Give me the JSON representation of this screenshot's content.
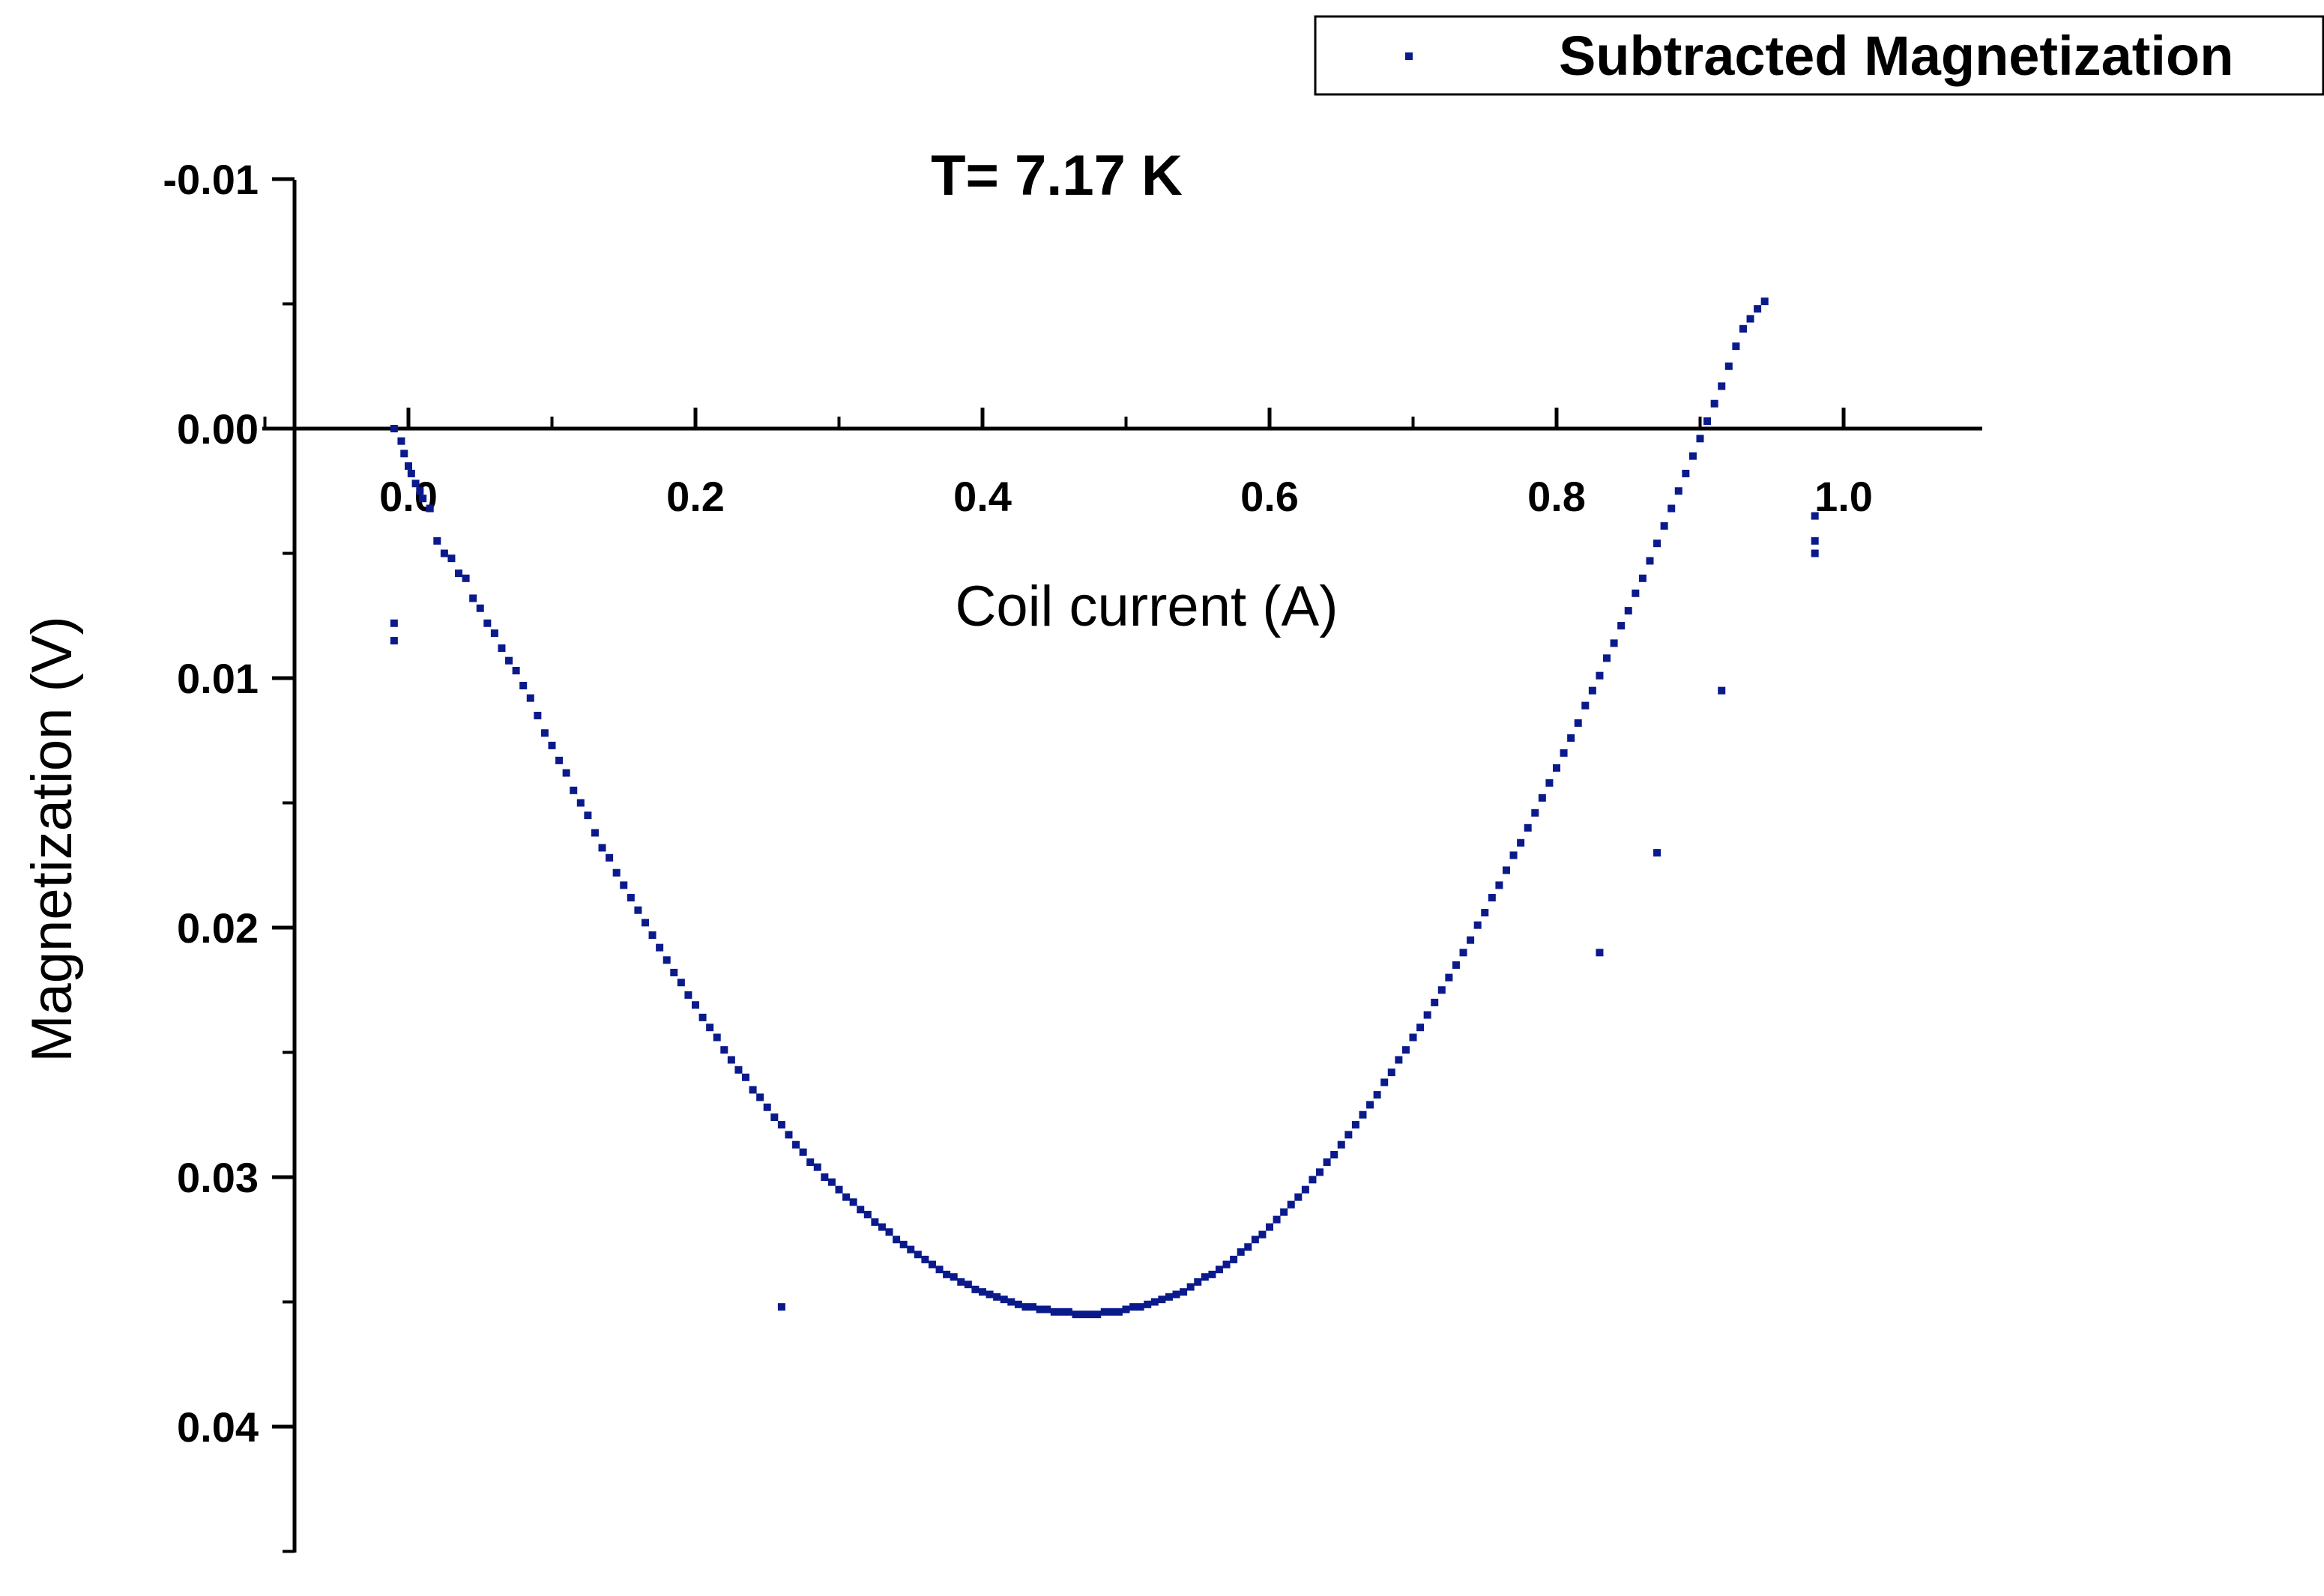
{
  "chart_data": {
    "type": "scatter",
    "title": "T= 7.17 K",
    "xlabel": "Coil current (A)",
    "ylabel": "Magnetization (V)",
    "xlim": [
      -0.15,
      1.1
    ],
    "ylim": [
      -0.01,
      0.045
    ],
    "y_inverted": true,
    "x_ticks": [
      0.0,
      0.2,
      0.4,
      0.6,
      0.8,
      1.0
    ],
    "x_tick_labels": [
      "0.0",
      "0.2",
      "0.4",
      "0.6",
      "0.8",
      "1.0"
    ],
    "y_ticks": [
      -0.01,
      0.0,
      0.01,
      0.02,
      0.03,
      0.04
    ],
    "y_tick_labels": [
      "-0.01",
      "0.00",
      "0.01",
      "0.02",
      "0.03",
      "0.04"
    ],
    "grid": false,
    "legend_position": "top-right",
    "marker_color": "#0a1a8c",
    "series": [
      {
        "name": "Subtracted Magnetization",
        "points": [
          [
            -0.01,
            0.0
          ],
          [
            -0.005,
            0.0005
          ],
          [
            -0.003,
            0.001
          ],
          [
            0.0,
            0.0015
          ],
          [
            0.002,
            0.0018
          ],
          [
            0.005,
            0.0022
          ],
          [
            0.008,
            0.0025
          ],
          [
            0.01,
            0.0028
          ],
          [
            0.015,
            0.0032
          ],
          [
            0.02,
            0.0045
          ],
          [
            0.025,
            0.005
          ],
          [
            0.03,
            0.0052
          ],
          [
            0.035,
            0.0058
          ],
          [
            0.04,
            0.006
          ],
          [
            0.045,
            0.0068
          ],
          [
            0.05,
            0.0072
          ],
          [
            0.055,
            0.0078
          ],
          [
            0.06,
            0.0082
          ],
          [
            0.065,
            0.0088
          ],
          [
            0.07,
            0.0093
          ],
          [
            0.075,
            0.0097
          ],
          [
            0.08,
            0.0103
          ],
          [
            0.085,
            0.0108
          ],
          [
            0.09,
            0.0115
          ],
          [
            0.095,
            0.0122
          ],
          [
            0.1,
            0.0127
          ],
          [
            0.105,
            0.0133
          ],
          [
            0.11,
            0.0138
          ],
          [
            0.115,
            0.0145
          ],
          [
            0.12,
            0.015
          ],
          [
            0.125,
            0.0155
          ],
          [
            0.13,
            0.0162
          ],
          [
            0.135,
            0.0168
          ],
          [
            0.14,
            0.0172
          ],
          [
            0.145,
            0.0178
          ],
          [
            0.15,
            0.0183
          ],
          [
            0.155,
            0.0188
          ],
          [
            0.16,
            0.0193
          ],
          [
            0.165,
            0.0198
          ],
          [
            0.17,
            0.0203
          ],
          [
            0.175,
            0.0208
          ],
          [
            0.18,
            0.0213
          ],
          [
            0.185,
            0.0218
          ],
          [
            0.19,
            0.0222
          ],
          [
            0.195,
            0.0227
          ],
          [
            0.2,
            0.0231
          ],
          [
            0.205,
            0.0236
          ],
          [
            0.21,
            0.024
          ],
          [
            0.215,
            0.0244
          ],
          [
            0.22,
            0.0249
          ],
          [
            0.225,
            0.0253
          ],
          [
            0.23,
            0.0257
          ],
          [
            0.235,
            0.026
          ],
          [
            0.24,
            0.0265
          ],
          [
            0.245,
            0.0268
          ],
          [
            0.25,
            0.0272
          ],
          [
            0.255,
            0.0276
          ],
          [
            0.26,
            0.0279
          ],
          [
            0.265,
            0.0283
          ],
          [
            0.27,
            0.0287
          ],
          [
            0.275,
            0.029
          ],
          [
            0.28,
            0.0294
          ],
          [
            0.285,
            0.0296
          ],
          [
            0.29,
            0.03
          ],
          [
            0.295,
            0.0302
          ],
          [
            0.3,
            0.0305
          ],
          [
            0.305,
            0.0308
          ],
          [
            0.31,
            0.031
          ],
          [
            0.315,
            0.0313
          ],
          [
            0.32,
            0.0315
          ],
          [
            0.325,
            0.0318
          ],
          [
            0.33,
            0.032
          ],
          [
            0.335,
            0.0322
          ],
          [
            0.34,
            0.0325
          ],
          [
            0.345,
            0.0327
          ],
          [
            0.35,
            0.0329
          ],
          [
            0.355,
            0.0331
          ],
          [
            0.36,
            0.0333
          ],
          [
            0.365,
            0.0335
          ],
          [
            0.37,
            0.0337
          ],
          [
            0.375,
            0.0339
          ],
          [
            0.38,
            0.034
          ],
          [
            0.385,
            0.0342
          ],
          [
            0.39,
            0.0343
          ],
          [
            0.395,
            0.0345
          ],
          [
            0.4,
            0.0346
          ],
          [
            0.405,
            0.0347
          ],
          [
            0.41,
            0.0348
          ],
          [
            0.415,
            0.0349
          ],
          [
            0.42,
            0.035
          ],
          [
            0.425,
            0.0351
          ],
          [
            0.43,
            0.0352
          ],
          [
            0.435,
            0.0352
          ],
          [
            0.44,
            0.0353
          ],
          [
            0.445,
            0.0353
          ],
          [
            0.45,
            0.0354
          ],
          [
            0.455,
            0.0354
          ],
          [
            0.46,
            0.0354
          ],
          [
            0.465,
            0.0355
          ],
          [
            0.47,
            0.0355
          ],
          [
            0.475,
            0.0355
          ],
          [
            0.48,
            0.0355
          ],
          [
            0.485,
            0.0354
          ],
          [
            0.49,
            0.0354
          ],
          [
            0.495,
            0.0354
          ],
          [
            0.5,
            0.0353
          ],
          [
            0.505,
            0.0352
          ],
          [
            0.51,
            0.0352
          ],
          [
            0.515,
            0.0351
          ],
          [
            0.52,
            0.035
          ],
          [
            0.525,
            0.0349
          ],
          [
            0.53,
            0.0348
          ],
          [
            0.535,
            0.0347
          ],
          [
            0.54,
            0.0346
          ],
          [
            0.545,
            0.0344
          ],
          [
            0.55,
            0.0342
          ],
          [
            0.555,
            0.034
          ],
          [
            0.56,
            0.0339
          ],
          [
            0.565,
            0.0337
          ],
          [
            0.57,
            0.0335
          ],
          [
            0.575,
            0.0333
          ],
          [
            0.58,
            0.033
          ],
          [
            0.585,
            0.0328
          ],
          [
            0.59,
            0.0325
          ],
          [
            0.595,
            0.0323
          ],
          [
            0.6,
            0.032
          ],
          [
            0.605,
            0.0317
          ],
          [
            0.61,
            0.0314
          ],
          [
            0.615,
            0.0311
          ],
          [
            0.62,
            0.0308
          ],
          [
            0.625,
            0.0305
          ],
          [
            0.63,
            0.0301
          ],
          [
            0.635,
            0.0298
          ],
          [
            0.64,
            0.0294
          ],
          [
            0.645,
            0.0291
          ],
          [
            0.65,
            0.0287
          ],
          [
            0.655,
            0.0283
          ],
          [
            0.66,
            0.0279
          ],
          [
            0.665,
            0.0275
          ],
          [
            0.67,
            0.0271
          ],
          [
            0.675,
            0.0267
          ],
          [
            0.68,
            0.0262
          ],
          [
            0.685,
            0.0258
          ],
          [
            0.69,
            0.0253
          ],
          [
            0.695,
            0.0249
          ],
          [
            0.7,
            0.0244
          ],
          [
            0.705,
            0.024
          ],
          [
            0.71,
            0.0235
          ],
          [
            0.715,
            0.023
          ],
          [
            0.72,
            0.0225
          ],
          [
            0.725,
            0.022
          ],
          [
            0.73,
            0.0215
          ],
          [
            0.735,
            0.021
          ],
          [
            0.74,
            0.0205
          ],
          [
            0.745,
            0.0199
          ],
          [
            0.75,
            0.0194
          ],
          [
            0.755,
            0.0188
          ],
          [
            0.76,
            0.0183
          ],
          [
            0.765,
            0.0177
          ],
          [
            0.77,
            0.0171
          ],
          [
            0.775,
            0.0166
          ],
          [
            0.78,
            0.016
          ],
          [
            0.785,
            0.0154
          ],
          [
            0.79,
            0.0148
          ],
          [
            0.795,
            0.0142
          ],
          [
            0.8,
            0.0136
          ],
          [
            0.805,
            0.013
          ],
          [
            0.81,
            0.0124
          ],
          [
            0.815,
            0.0118
          ],
          [
            0.82,
            0.0111
          ],
          [
            0.825,
            0.0105
          ],
          [
            0.83,
            0.0099
          ],
          [
            0.835,
            0.0092
          ],
          [
            0.84,
            0.0086
          ],
          [
            0.845,
            0.0079
          ],
          [
            0.85,
            0.0073
          ],
          [
            0.855,
            0.0066
          ],
          [
            0.86,
            0.006
          ],
          [
            0.865,
            0.0053
          ],
          [
            0.87,
            0.0046
          ],
          [
            0.875,
            0.0039
          ],
          [
            0.88,
            0.0032
          ],
          [
            0.885,
            0.0025
          ],
          [
            0.89,
            0.0018
          ],
          [
            0.895,
            0.0011
          ],
          [
            0.9,
            0.0004
          ],
          [
            0.905,
            -0.0003
          ],
          [
            0.91,
            -0.001
          ],
          [
            0.915,
            -0.0017
          ],
          [
            0.92,
            -0.0025
          ],
          [
            0.925,
            -0.0033
          ],
          [
            0.93,
            -0.004
          ],
          [
            0.935,
            -0.0044
          ],
          [
            0.94,
            -0.0048
          ],
          [
            0.945,
            -0.0051
          ],
          [
            -0.01,
            0.0078
          ],
          [
            -0.01,
            0.0085
          ],
          [
            0.26,
            0.0352
          ],
          [
            0.915,
            0.0105
          ],
          [
            0.87,
            0.017
          ],
          [
            0.83,
            0.021
          ],
          [
            0.98,
            0.0035
          ],
          [
            0.98,
            0.0045
          ],
          [
            0.98,
            0.005
          ]
        ]
      }
    ]
  }
}
